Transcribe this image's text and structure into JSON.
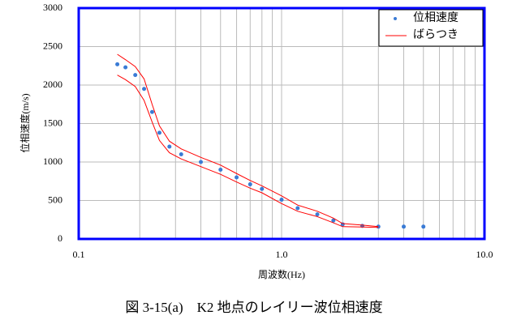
{
  "chart_data": {
    "type": "scatter-band",
    "x_label": "周波数(Hz)",
    "y_label": "位相速度(m/s)",
    "caption": "図 3-15(a)　K2 地点のレイリー波位相速度",
    "x": [
      0.155,
      0.17,
      0.19,
      0.21,
      0.23,
      0.25,
      0.28,
      0.32,
      0.4,
      0.5,
      0.6,
      0.7,
      0.8,
      1.0,
      1.2,
      1.5,
      1.8,
      2.0,
      2.5,
      3.0,
      4.0,
      5.0
    ],
    "series": [
      {
        "name": "位相速度",
        "color": "#3a7bd5",
        "values": [
          2270,
          2230,
          2130,
          1950,
          1650,
          1380,
          1200,
          1100,
          1000,
          900,
          800,
          710,
          650,
          510,
          400,
          320,
          240,
          190,
          170,
          160,
          160,
          160
        ]
      },
      {
        "name": "ばらつき",
        "color": "#ff0000",
        "upper": [
          2400,
          2330,
          2240,
          2080,
          1750,
          1470,
          1270,
          1170,
          1060,
          960,
          850,
          760,
          690,
          560,
          440,
          360,
          270,
          200,
          180,
          160,
          null,
          null
        ],
        "lower": [
          2130,
          2070,
          1980,
          1800,
          1520,
          1280,
          1120,
          1040,
          940,
          840,
          740,
          660,
          600,
          460,
          360,
          290,
          210,
          160,
          155,
          150,
          null,
          null
        ]
      }
    ],
    "xlog": true,
    "xlim": [
      0.1,
      10
    ],
    "xticks": [
      {
        "value": 0.1,
        "label": "0.1"
      },
      {
        "value": 1,
        "label": "1.0"
      },
      {
        "value": 10,
        "label": "10.0"
      }
    ],
    "x_minor_grid": [
      0.2,
      0.3,
      0.4,
      0.5,
      0.6,
      0.7,
      0.8,
      0.9,
      2,
      3,
      4,
      5,
      6,
      7,
      8,
      9
    ],
    "ylim": [
      0,
      3000
    ],
    "yticks": [
      0,
      500,
      1000,
      1500,
      2000,
      2500,
      3000
    ],
    "grid": true,
    "legend": "top-right",
    "frame_color": "#0000ff"
  }
}
